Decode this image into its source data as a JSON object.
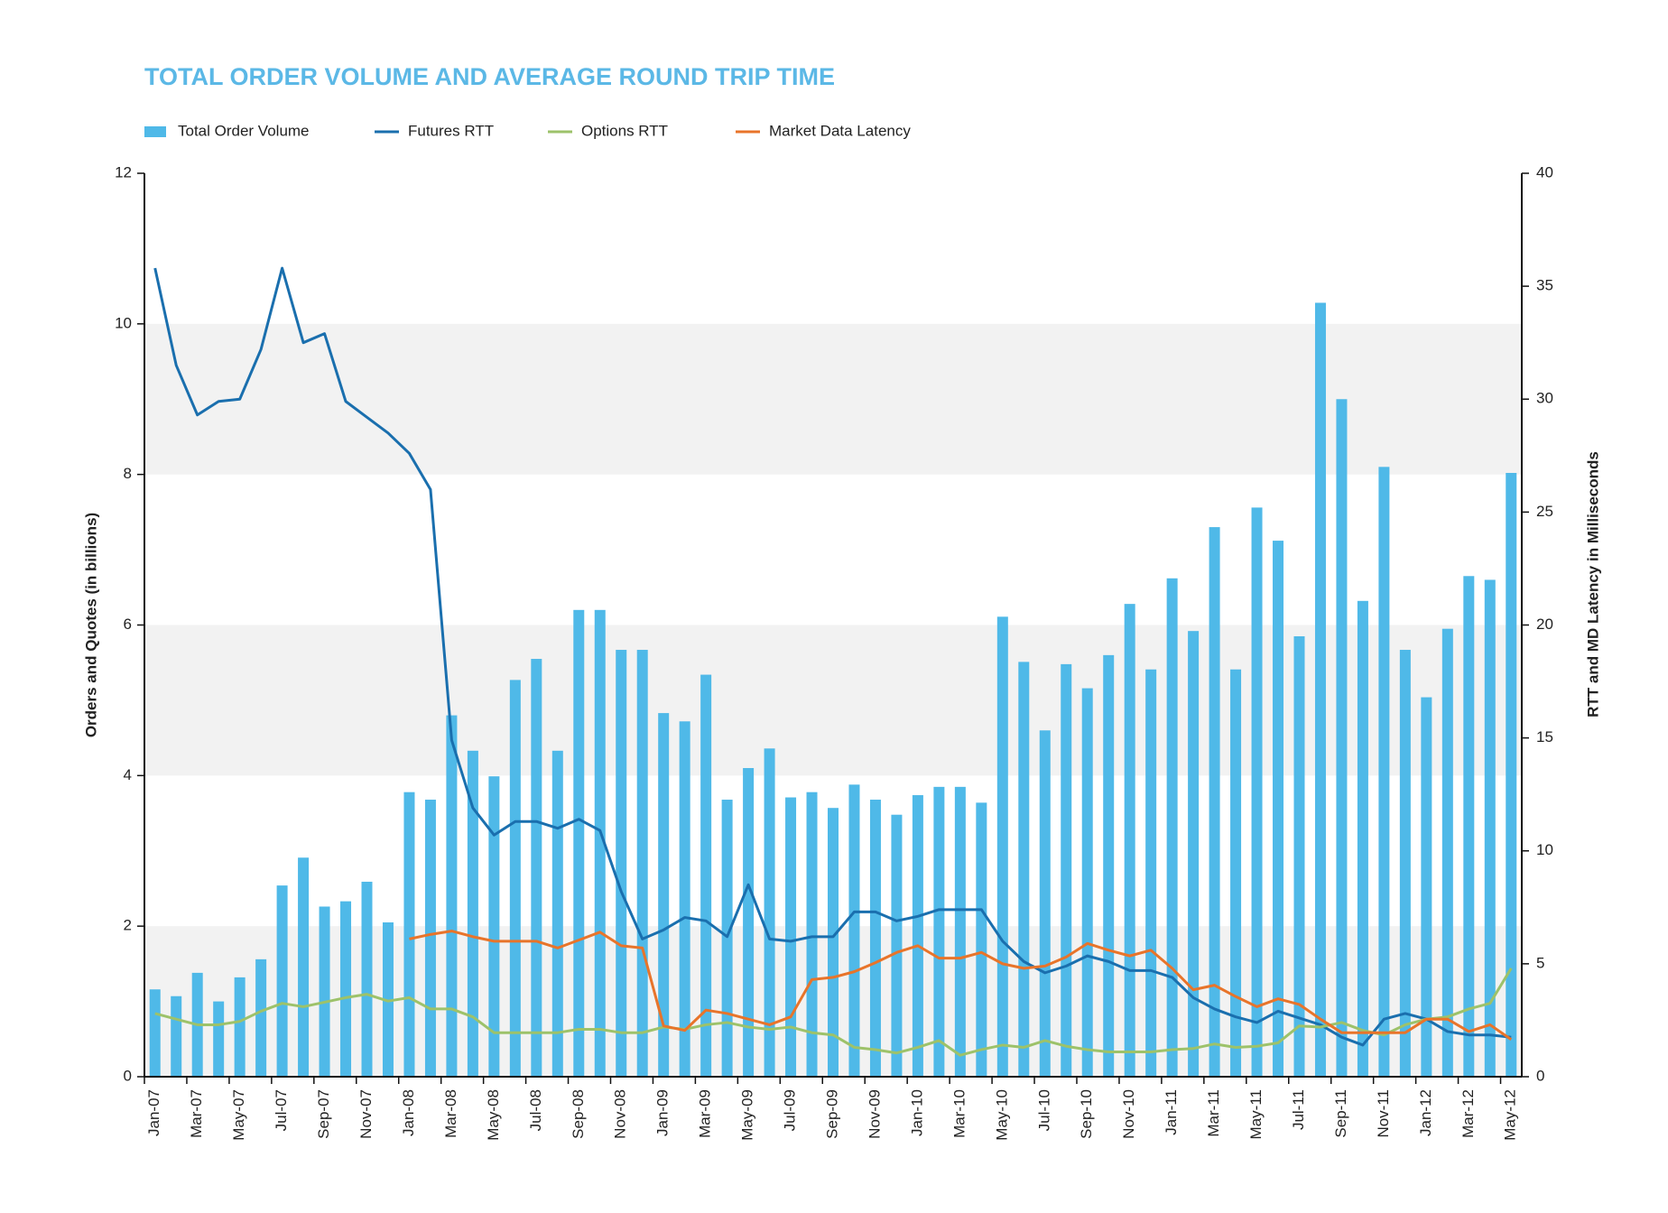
{
  "chart_data": {
    "type": "bar",
    "title": "TOTAL ORDER VOLUME AND AVERAGE ROUND TRIP TIME",
    "ylabel": "Orders and Quotes (in billions)",
    "y2label": "RTT and MD Latency in Milliseconds",
    "categories": [
      "Jan-07",
      null,
      "Mar-07",
      null,
      "May-07",
      null,
      "Jul-07",
      null,
      "Sep-07",
      null,
      "Nov-07",
      null,
      "Jan-08",
      null,
      "Mar-08",
      null,
      "May-08",
      null,
      "Jul-08",
      null,
      "Sep-08",
      null,
      "Nov-08",
      null,
      "Jan-09",
      null,
      "Mar-09",
      null,
      "May-09",
      null,
      "Jul-09",
      null,
      "Sep-09",
      null,
      "Nov-09",
      null,
      "Jan-10",
      null,
      "Mar-10",
      null,
      "May-10",
      null,
      "Jul-10",
      null,
      "Sep-10",
      null,
      "Nov-10",
      null,
      "Jan-11",
      null,
      "Mar-11",
      null,
      "May-11",
      null,
      "Jul-11",
      null,
      "Sep-11",
      null,
      "Nov-11",
      null,
      "Jan-12",
      null,
      "Mar-12",
      null,
      "May-12"
    ],
    "series": [
      {
        "name": "Total Order Volume",
        "type": "bar",
        "axis": "y",
        "color": "#4fb9e8",
        "values": [
          1.16,
          1.07,
          1.38,
          1.0,
          1.32,
          1.56,
          2.54,
          2.91,
          2.26,
          2.33,
          2.59,
          2.05,
          3.78,
          3.68,
          4.8,
          4.33,
          3.99,
          5.27,
          5.55,
          4.33,
          6.2,
          6.2,
          5.67,
          5.67,
          4.83,
          4.72,
          5.34,
          3.68,
          4.1,
          4.36,
          3.71,
          3.78,
          3.57,
          3.88,
          3.68,
          3.48,
          3.74,
          3.85,
          3.85,
          3.64,
          6.11,
          5.51,
          4.6,
          5.48,
          5.16,
          5.6,
          6.28,
          5.41,
          6.62,
          5.92,
          7.3,
          5.41,
          7.56,
          7.12,
          5.85,
          10.28,
          9.0,
          6.32,
          8.1,
          5.67,
          5.04,
          5.95,
          6.65,
          6.6,
          8.02
        ]
      },
      {
        "name": "Futures RTT",
        "type": "line",
        "axis": "y2",
        "color": "#1a6fae",
        "values": [
          35.8,
          31.5,
          29.3,
          29.9,
          30.0,
          32.2,
          35.8,
          32.5,
          32.9,
          29.9,
          29.2,
          28.5,
          27.6,
          26.0,
          14.9,
          11.9,
          10.7,
          11.3,
          11.3,
          11.0,
          11.4,
          10.9,
          8.2,
          6.1,
          6.5,
          7.05,
          6.9,
          6.2,
          8.5,
          6.1,
          6.0,
          6.2,
          6.2,
          7.3,
          7.3,
          6.9,
          7.1,
          7.4,
          7.4,
          7.4,
          6.0,
          5.1,
          4.6,
          4.9,
          5.35,
          5.1,
          4.7,
          4.7,
          4.4,
          3.5,
          3.0,
          2.65,
          2.4,
          2.9,
          2.6,
          2.3,
          1.75,
          1.4,
          2.55,
          2.8,
          2.55,
          2.0,
          1.85,
          1.85,
          1.75
        ]
      },
      {
        "name": "Options RTT",
        "type": "line",
        "axis": "y2",
        "color": "#9dc26a",
        "values": [
          2.8,
          2.55,
          2.3,
          2.3,
          2.45,
          2.9,
          3.25,
          3.1,
          3.3,
          3.5,
          3.65,
          3.35,
          3.5,
          3.0,
          3.0,
          2.65,
          1.95,
          1.95,
          1.95,
          1.95,
          2.1,
          2.1,
          1.95,
          1.95,
          2.2,
          2.1,
          2.3,
          2.4,
          2.2,
          2.1,
          2.2,
          1.95,
          1.85,
          1.3,
          1.2,
          1.05,
          1.3,
          1.6,
          0.95,
          1.2,
          1.4,
          1.3,
          1.6,
          1.35,
          1.2,
          1.1,
          1.1,
          1.1,
          1.2,
          1.25,
          1.45,
          1.3,
          1.35,
          1.5,
          2.25,
          2.2,
          2.4,
          2.05,
          1.85,
          2.3,
          2.55,
          2.65,
          3.0,
          3.25,
          4.8
        ]
      },
      {
        "name": "Market Data Latency",
        "type": "line",
        "axis": "y2",
        "color": "#e8742a",
        "values": [
          null,
          null,
          null,
          null,
          null,
          null,
          null,
          null,
          null,
          null,
          null,
          null,
          6.1,
          6.3,
          6.45,
          6.2,
          6.0,
          6.0,
          6.0,
          5.7,
          6.05,
          6.4,
          5.8,
          5.7,
          2.25,
          2.05,
          2.95,
          2.8,
          2.55,
          2.3,
          2.65,
          4.3,
          4.4,
          4.65,
          5.05,
          5.5,
          5.8,
          5.25,
          5.25,
          5.5,
          5.0,
          4.8,
          4.9,
          5.3,
          5.9,
          5.6,
          5.35,
          5.6,
          4.8,
          3.85,
          4.05,
          3.55,
          3.1,
          3.45,
          3.2,
          2.55,
          1.95,
          1.95,
          1.95,
          1.95,
          2.55,
          2.55,
          2.0,
          2.3,
          1.65
        ]
      }
    ],
    "ylim": [
      0,
      12
    ],
    "yticks": [
      0,
      2,
      4,
      6,
      8,
      10,
      12
    ],
    "y2lim": [
      0,
      40
    ],
    "y2ticks": [
      0,
      5,
      10,
      15,
      20,
      25,
      30,
      35,
      40
    ],
    "bands": true
  }
}
